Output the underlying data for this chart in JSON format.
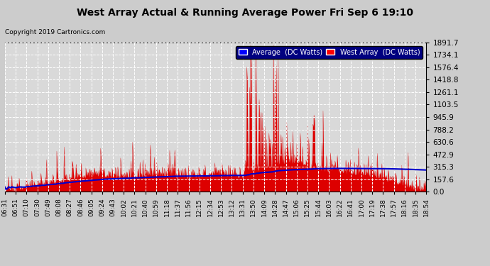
{
  "title": "West Array Actual & Running Average Power Fri Sep 6 19:10",
  "copyright": "Copyright 2019 Cartronics.com",
  "legend_labels": [
    "Average  (DC Watts)",
    "West Array  (DC Watts)"
  ],
  "yticks": [
    0.0,
    157.6,
    315.3,
    472.9,
    630.6,
    788.2,
    945.9,
    1103.5,
    1261.1,
    1418.8,
    1576.4,
    1734.1,
    1891.7
  ],
  "ymax": 1891.7,
  "ymin": 0.0,
  "bg_color": "#cccccc",
  "plot_bg_color": "#d9d9d9",
  "grid_color": "#bbbbbb",
  "bar_color": "#dd0000",
  "avg_color": "#0000cc",
  "xtick_labels": [
    "06:31",
    "06:51",
    "07:10",
    "07:30",
    "07:49",
    "08:08",
    "08:27",
    "08:46",
    "09:05",
    "09:24",
    "09:43",
    "10:02",
    "10:21",
    "10:40",
    "10:59",
    "11:18",
    "11:37",
    "11:56",
    "12:15",
    "12:34",
    "12:53",
    "13:12",
    "13:31",
    "13:50",
    "14:09",
    "14:28",
    "14:47",
    "15:06",
    "15:25",
    "15:44",
    "16:03",
    "16:22",
    "16:41",
    "17:00",
    "17:19",
    "17:38",
    "17:57",
    "18:16",
    "18:35",
    "18:54"
  ]
}
